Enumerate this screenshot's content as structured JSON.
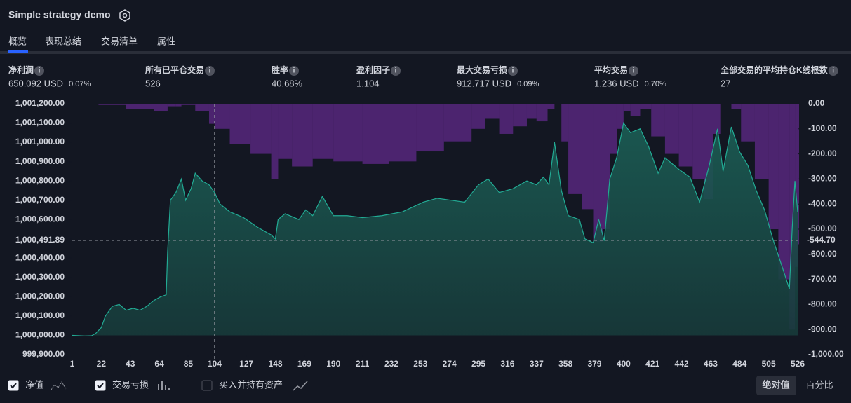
{
  "header": {
    "title": "Simple strategy demo"
  },
  "tabs": [
    "概览",
    "表现总结",
    "交易清单",
    "属性"
  ],
  "metrics": [
    {
      "label": "净利润",
      "value": "650.092 USD",
      "pct": "0.07%",
      "tone": "up"
    },
    {
      "label": "所有已平仓交易",
      "value": "526",
      "tone": "plain"
    },
    {
      "label": "胜率",
      "value": "40.68%",
      "tone": "up"
    },
    {
      "label": "盈利因子",
      "value": "1.104",
      "tone": "up"
    },
    {
      "label": "最大交易亏损",
      "value": "912.717 USD",
      "pct": "0.09%",
      "tone": "down"
    },
    {
      "label": "平均交易",
      "value": "1.236 USD",
      "pct": "0.70%",
      "tone": "up"
    },
    {
      "label": "全部交易的平均持仓K线根数",
      "value": "27",
      "tone": "plain"
    }
  ],
  "chart_data": {
    "type": "area",
    "xlim": [
      1,
      526
    ],
    "xticks": [
      1,
      22,
      43,
      64,
      85,
      104,
      127,
      148,
      169,
      190,
      211,
      232,
      253,
      274,
      295,
      316,
      337,
      358,
      379,
      400,
      421,
      442,
      463,
      484,
      505,
      526
    ],
    "ylim": [
      999900,
      1001200
    ],
    "yticks": [
      {
        "value": 999900,
        "label": "999,900.00"
      },
      {
        "value": 1000000,
        "label": "1,000,000.00"
      },
      {
        "value": 1000100,
        "label": "1,000,100.00"
      },
      {
        "value": 1000200,
        "label": "1,000,200.00"
      },
      {
        "value": 1000300,
        "label": "1,000,300.00"
      },
      {
        "value": 1000400,
        "label": "1,000,400.00"
      },
      {
        "value": 1000500,
        "label": "1,000,500.00"
      },
      {
        "value": 1000600,
        "label": "1,000,600.00"
      },
      {
        "value": 1000700,
        "label": "1,000,700.00"
      },
      {
        "value": 1000800,
        "label": "1,000,800.00"
      },
      {
        "value": 1000900,
        "label": "1,000,900.00"
      },
      {
        "value": 1001000,
        "label": "1,001,000.00"
      },
      {
        "value": 1001100,
        "label": "1,001,100.00"
      },
      {
        "value": 1001200,
        "label": "1,001,200.00"
      }
    ],
    "y2lim": [
      -1000,
      0
    ],
    "y2ticks": [
      {
        "value": 0,
        "label": "0.00"
      },
      {
        "value": -100,
        "label": "-100.00"
      },
      {
        "value": -200,
        "label": "-200.00"
      },
      {
        "value": -300,
        "label": "-300.00"
      },
      {
        "value": -400,
        "label": "-400.00"
      },
      {
        "value": -500,
        "label": "-500.00"
      },
      {
        "value": -600,
        "label": "-600.00"
      },
      {
        "value": -700,
        "label": "-700.00"
      },
      {
        "value": -800,
        "label": "-800.00"
      },
      {
        "value": -900,
        "label": "-900.00"
      },
      {
        "value": -1000,
        "label": "-1,000.00"
      }
    ],
    "series": [
      {
        "name": "净值",
        "color": "#22ab94",
        "x": [
          1,
          10,
          15,
          18,
          22,
          25,
          30,
          35,
          40,
          45,
          50,
          55,
          60,
          65,
          69,
          70,
          72,
          76,
          80,
          83,
          87,
          90,
          95,
          100,
          104,
          108,
          115,
          125,
          135,
          145,
          148,
          150,
          155,
          165,
          170,
          175,
          182,
          190,
          200,
          211,
          225,
          240,
          255,
          265,
          275,
          285,
          295,
          302,
          310,
          320,
          330,
          337,
          342,
          346,
          350,
          355,
          360,
          368,
          372,
          378,
          382,
          386,
          390,
          395,
          400,
          405,
          412,
          418,
          425,
          430,
          440,
          448,
          455,
          462,
          468,
          472,
          478,
          484,
          490,
          496,
          502,
          508,
          515,
          520,
          522,
          524,
          526
        ],
        "values": [
          1000000,
          999997,
          999998,
          1000010,
          1000040,
          1000100,
          1000150,
          1000160,
          1000130,
          1000140,
          1000130,
          1000150,
          1000180,
          1000200,
          1000210,
          1000430,
          1000700,
          1000740,
          1000810,
          1000700,
          1000760,
          1000840,
          1000800,
          1000780,
          1000740,
          1000680,
          1000640,
          1000610,
          1000560,
          1000520,
          1000500,
          1000600,
          1000630,
          1000600,
          1000650,
          1000620,
          1000720,
          1000620,
          1000620,
          1000610,
          1000620,
          1000640,
          1000690,
          1000710,
          1000700,
          1000690,
          1000780,
          1000810,
          1000740,
          1000760,
          1000800,
          1000780,
          1000820,
          1000780,
          1001000,
          1000750,
          1000620,
          1000600,
          1000500,
          1000480,
          1000600,
          1000490,
          1000810,
          1000920,
          1001100,
          1001050,
          1001070,
          1000980,
          1000840,
          1000920,
          1000860,
          1000820,
          1000690,
          1000880,
          1001070,
          1000850,
          1001080,
          1000950,
          1000880,
          1000750,
          1000650,
          1000500,
          1000350,
          1000240,
          1000550,
          1000800,
          1000640
        ]
      },
      {
        "name": "交易亏损",
        "color": "#7b2fae",
        "axis": "y2",
        "x": [
          1,
          20,
          40,
          60,
          70,
          76,
          80,
          90,
          100,
          104,
          115,
          130,
          145,
          150,
          160,
          175,
          190,
          211,
          230,
          250,
          270,
          290,
          300,
          310,
          320,
          330,
          337,
          345,
          350,
          355,
          360,
          370,
          378,
          385,
          390,
          395,
          400,
          405,
          412,
          420,
          430,
          440,
          450,
          458,
          465,
          470,
          478,
          485,
          495,
          505,
          512,
          520,
          524,
          526
        ],
        "values": [
          0,
          -5,
          -20,
          -30,
          -10,
          -10,
          -5,
          -30,
          -80,
          -100,
          -160,
          -200,
          -300,
          -220,
          -250,
          -220,
          -230,
          -240,
          -230,
          -190,
          -150,
          -100,
          -60,
          -120,
          -90,
          -60,
          -70,
          -20,
          0,
          -150,
          -360,
          -420,
          -550,
          -500,
          -200,
          -100,
          -30,
          -50,
          -20,
          -130,
          -200,
          -250,
          -300,
          -380,
          -120,
          0,
          -20,
          -150,
          -300,
          -500,
          -700,
          -900,
          -650,
          -560
        ]
      }
    ],
    "crosshair": {
      "x": 104,
      "y": {
        "value": 1000491.89,
        "label": "1,000,491.89"
      },
      "y2": {
        "value": -544.7,
        "label": "-544.70"
      }
    },
    "unchecked_legend": "买入并持有资产"
  },
  "buttons": [
    "绝对值",
    "百分比"
  ]
}
